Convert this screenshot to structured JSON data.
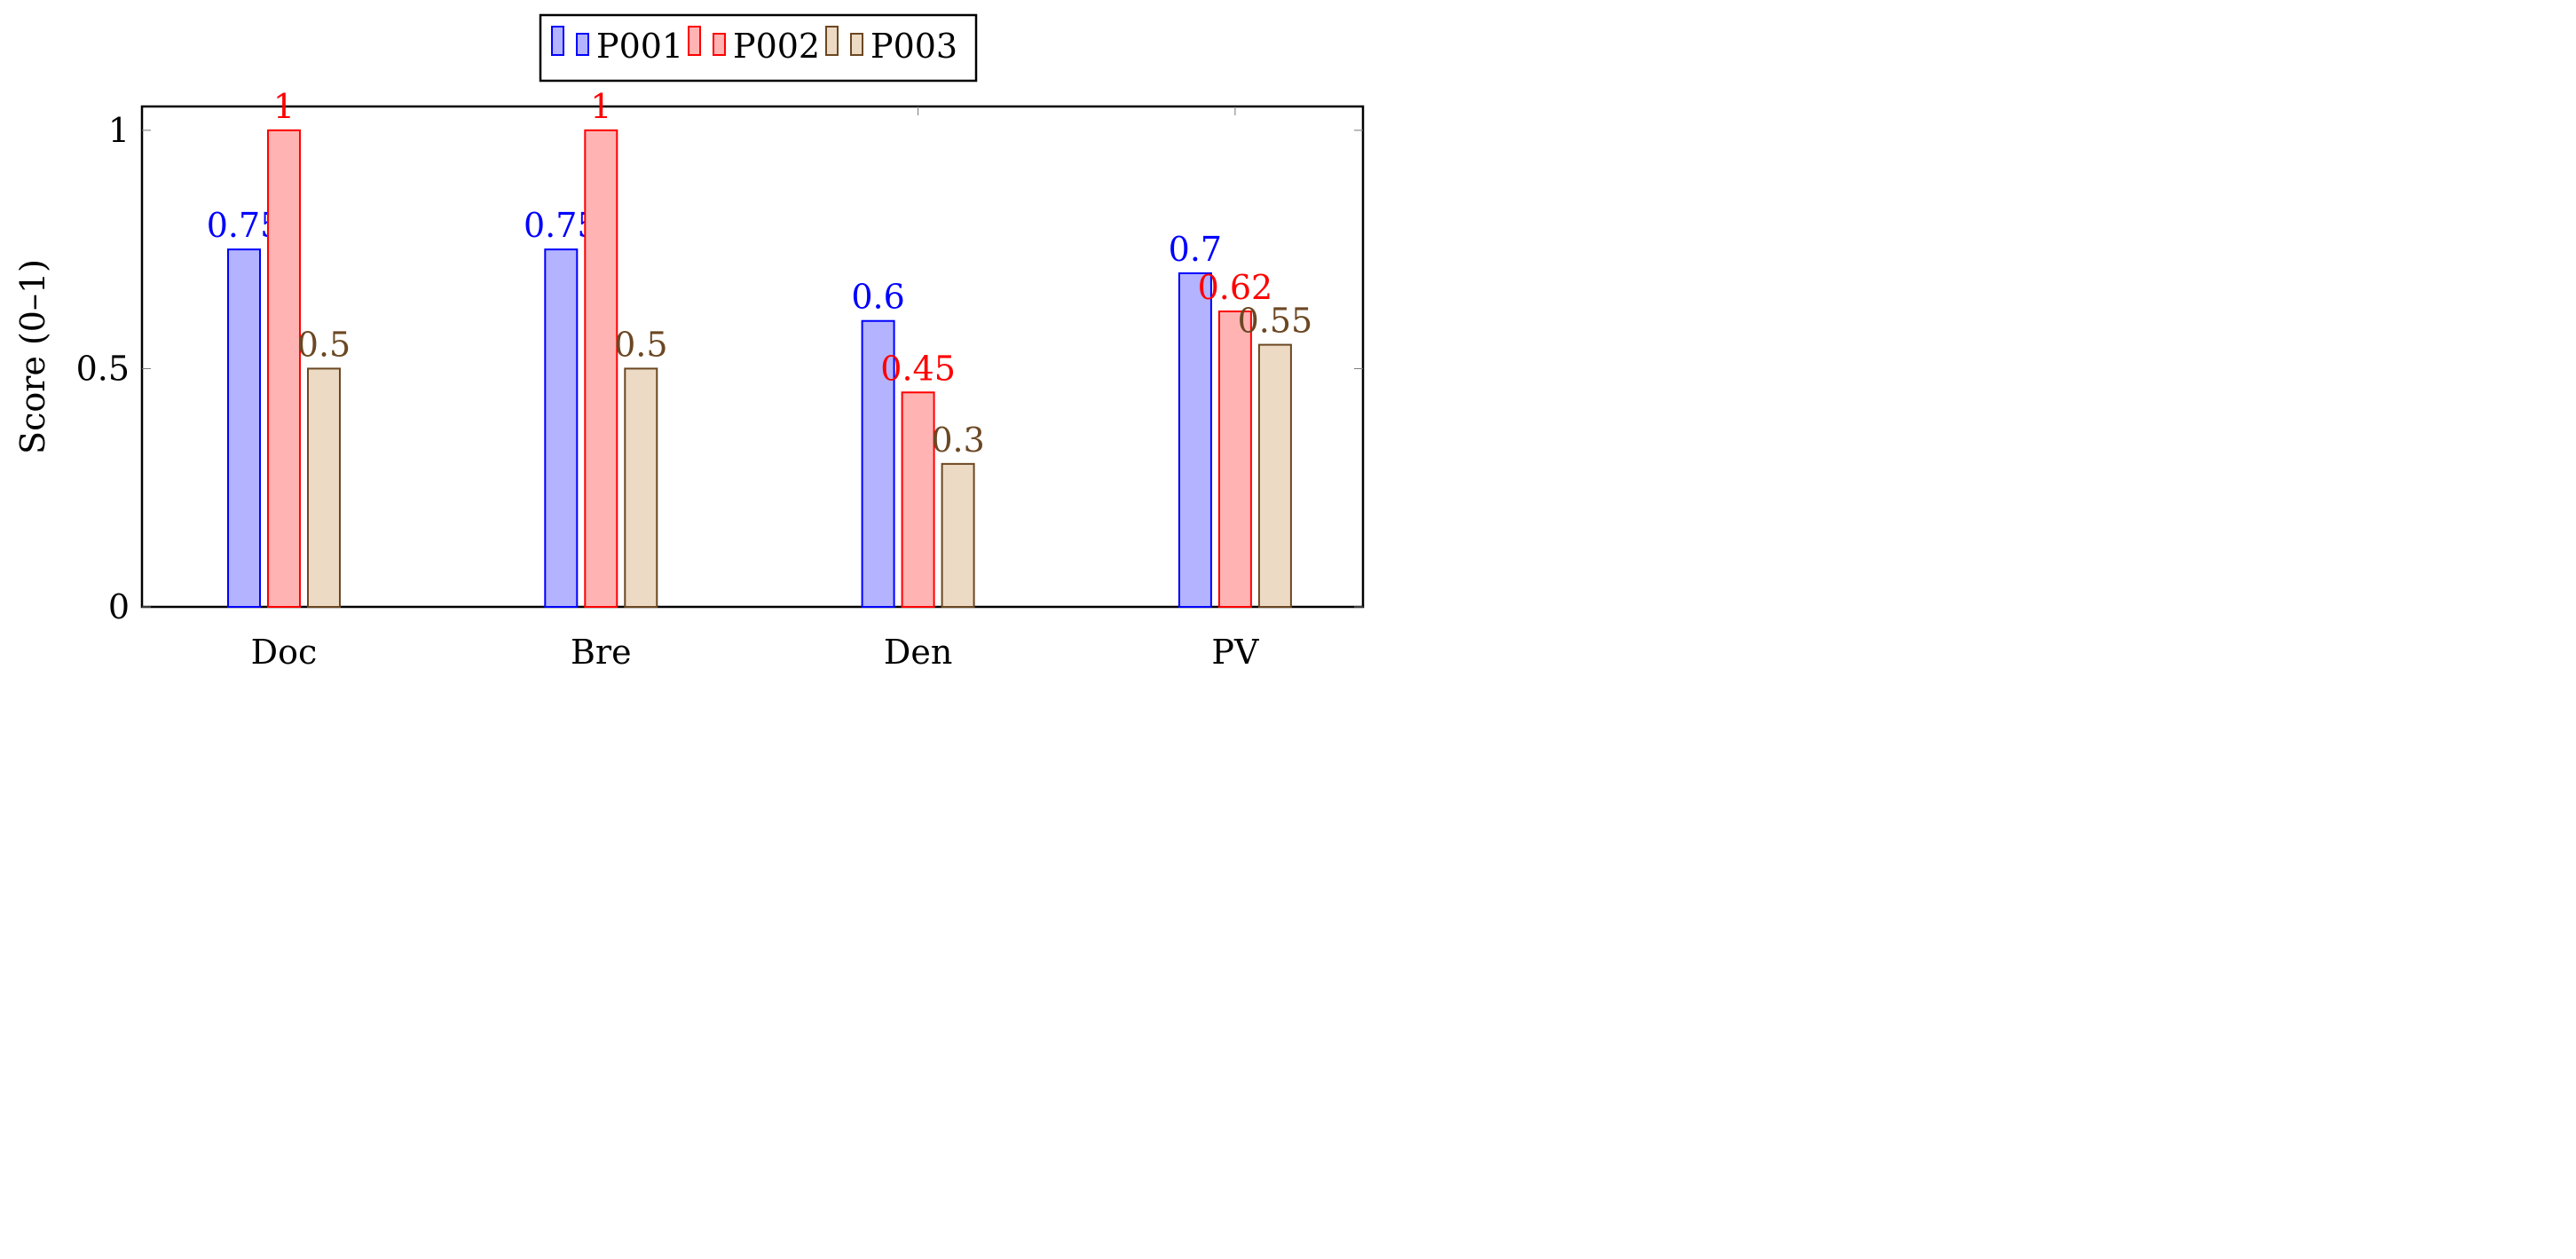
{
  "chart_data": {
    "type": "bar",
    "categories": [
      "Doc",
      "Bre",
      "Den",
      "PV"
    ],
    "series": [
      {
        "name": "P001",
        "values": [
          0.75,
          0.75,
          0.6,
          0.7
        ],
        "stroke": "#0000ff",
        "fill": "#b3b3ff"
      },
      {
        "name": "P002",
        "values": [
          1,
          1,
          0.45,
          0.62
        ],
        "stroke": "#ff0000",
        "fill": "#ffb3b3"
      },
      {
        "name": "P003",
        "values": [
          0.5,
          0.5,
          0.3,
          0.55
        ],
        "stroke": "#6b4722",
        "fill": "#ecdac4"
      }
    ],
    "ylabel": "Score (0–1)",
    "xlabel": "",
    "ylim": [
      0,
      1.05
    ],
    "yticks": [
      {
        "value": 0,
        "label": "0"
      },
      {
        "value": 0.5,
        "label": "0.5"
      },
      {
        "value": 1,
        "label": "1"
      }
    ],
    "legend": "top-center",
    "grid": false
  }
}
